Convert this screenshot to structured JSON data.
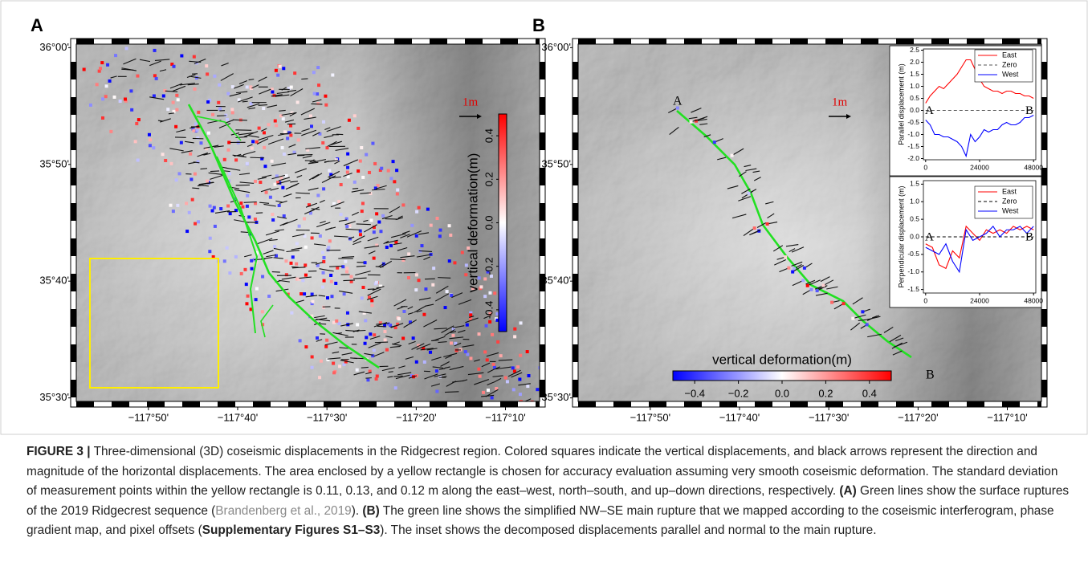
{
  "figure": {
    "panels": [
      {
        "label": "A",
        "xlim": [
          -117.968,
          -117.103
        ],
        "ylim": [
          35.495,
          36.005
        ],
        "xticks": [
          {
            "value": -117.8333,
            "label": "−117°50'"
          },
          {
            "value": -117.6667,
            "label": "−117°40'"
          },
          {
            "value": -117.5,
            "label": "−117°30'"
          },
          {
            "value": -117.3333,
            "label": "−117°20'"
          },
          {
            "value": -117.1667,
            "label": "−117°10'"
          }
        ],
        "yticks": [
          {
            "value": 36,
            "label": "36°00'"
          },
          {
            "value": 35.8333,
            "label": "35°50'"
          },
          {
            "value": 35.6667,
            "label": "35°40'"
          },
          {
            "value": 35.5,
            "label": "35°30'"
          }
        ],
        "scale_label": "1m",
        "colorbar": {
          "label": "vertical deformation(m)",
          "orientation": "vertical",
          "lim": [
            -0.5,
            0.5
          ],
          "ticks": [
            0.4,
            0.2,
            {
              "value": 0,
              "label": "0.0"
            },
            -0.2,
            -0.4
          ]
        }
      },
      {
        "label": "B",
        "xlim": [
          -117.968,
          -117.103
        ],
        "ylim": [
          35.495,
          36.005
        ],
        "xticks": [
          {
            "value": -117.8333,
            "label": "−117°50'"
          },
          {
            "value": -117.6667,
            "label": "−117°40'"
          },
          {
            "value": -117.5,
            "label": "−117°30'"
          },
          {
            "value": -117.3333,
            "label": "−117°20'"
          },
          {
            "value": -117.1667,
            "label": "−117°10'"
          }
        ],
        "yticks": [
          {
            "value": 36,
            "label": "36°00'"
          },
          {
            "value": 35.8333,
            "label": "35°50'"
          },
          {
            "value": 35.6667,
            "label": "35°40'"
          },
          {
            "value": 35.5,
            "label": "35°30'"
          }
        ],
        "scale_label": "1m",
        "endpoints": [
          "A",
          "B"
        ],
        "colorbar": {
          "label": "vertical deformation(m)",
          "orientation": "horizontal",
          "lim": [
            -0.5,
            0.5
          ],
          "ticks": [
            {
              "value": -0.4,
              "label": "−0.4"
            },
            {
              "value": -0.2,
              "label": "−0.2"
            },
            {
              "value": 0,
              "label": "0.0"
            },
            0.2,
            0.4
          ]
        }
      }
    ]
  },
  "chart_data": [
    {
      "type": "line",
      "y_label": "Parallel displacement (m)",
      "annotations": [
        "A",
        "B"
      ],
      "xlim": [
        -1000,
        49000
      ],
      "xticks": [
        0,
        24000,
        48000
      ],
      "ylim": [
        -2.05,
        2.55
      ],
      "yticks": [
        2.5,
        {
          "value": 2,
          "label": "2.0"
        },
        1.5,
        {
          "value": 1,
          "label": "1.0"
        },
        0.5,
        {
          "value": 0,
          "label": "0.0"
        },
        -0.5,
        {
          "value": -1,
          "label": "-1.0"
        },
        -1.5,
        {
          "value": -2,
          "label": "-2.0"
        }
      ],
      "legend": "top-right",
      "series": [
        {
          "name": "East",
          "color": "#ff0000",
          "style": "solid",
          "x": [
            0,
            2000,
            4000,
            6000,
            8000,
            10000,
            12000,
            14000,
            16000,
            18000,
            20000,
            22000,
            24000,
            26000,
            28000,
            30000,
            32000,
            34000,
            36000,
            38000,
            40000,
            42000,
            44000,
            46000,
            48000
          ],
          "values": [
            0.3,
            0.6,
            0.8,
            1.0,
            0.9,
            1.1,
            1.3,
            1.5,
            1.8,
            2.1,
            2.1,
            1.7,
            1.3,
            1.0,
            0.9,
            0.8,
            0.8,
            0.7,
            0.8,
            0.8,
            0.7,
            0.7,
            0.6,
            0.6,
            0.5
          ]
        },
        {
          "name": "Zero",
          "color": "#555555",
          "style": "dashed",
          "x": [
            0,
            48000
          ],
          "values": [
            0,
            0
          ]
        },
        {
          "name": "West",
          "color": "#0000ff",
          "style": "solid",
          "x": [
            0,
            2000,
            4000,
            6000,
            8000,
            10000,
            12000,
            14000,
            16000,
            18000,
            20000,
            22000,
            24000,
            26000,
            28000,
            30000,
            32000,
            34000,
            36000,
            38000,
            40000,
            42000,
            44000,
            46000,
            48000
          ],
          "values": [
            -0.4,
            -0.6,
            -1.0,
            -1.0,
            -1.1,
            -1.1,
            -1.2,
            -1.3,
            -1.5,
            -1.9,
            -1.0,
            -1.3,
            -1.1,
            -0.8,
            -0.9,
            -0.8,
            -0.8,
            -0.6,
            -0.5,
            -0.6,
            -0.6,
            -0.5,
            -0.3,
            -0.3,
            -0.2
          ]
        }
      ]
    },
    {
      "type": "line",
      "y_label": "Perpendicular displacement (m)",
      "annotations": [
        "A",
        "B"
      ],
      "xlim": [
        -1000,
        49000
      ],
      "xticks": [
        0,
        24000,
        48000
      ],
      "ylim": [
        -1.6,
        1.6
      ],
      "yticks": [
        1.5,
        {
          "value": 1,
          "label": "1.0"
        },
        0.5,
        {
          "value": 0,
          "label": "0.0"
        },
        -0.5,
        {
          "value": -1,
          "label": "-1.0"
        },
        -1.5
      ],
      "legend": "top-right",
      "series": [
        {
          "name": "East",
          "color": "#ff0000",
          "style": "solid",
          "x": [
            0,
            3000,
            6000,
            9000,
            12000,
            15000,
            18000,
            21000,
            24000,
            27000,
            30000,
            33000,
            36000,
            39000,
            42000,
            45000,
            48000
          ],
          "values": [
            -0.2,
            -0.3,
            -0.8,
            -0.9,
            -0.4,
            -0.6,
            0.3,
            0.1,
            -0.1,
            0.2,
            0.1,
            0.2,
            0.1,
            0.3,
            0.2,
            0.3,
            0.2
          ]
        },
        {
          "name": "Zero",
          "color": "#000000",
          "style": "dashed",
          "x": [
            0,
            48000
          ],
          "values": [
            0,
            0
          ]
        },
        {
          "name": "West",
          "color": "#0000ff",
          "style": "solid",
          "x": [
            0,
            3000,
            6000,
            9000,
            12000,
            15000,
            18000,
            21000,
            24000,
            27000,
            30000,
            33000,
            36000,
            39000,
            42000,
            45000,
            48000
          ],
          "values": [
            -0.3,
            -0.4,
            -0.5,
            -0.2,
            -0.7,
            -1.0,
            0.2,
            -0.1,
            0.0,
            0.1,
            0.3,
            0.0,
            0.2,
            0.2,
            0.3,
            0.1,
            0.3
          ]
        }
      ]
    }
  ],
  "caption": {
    "figure_label": "FIGURE 3 |",
    "text_1": "Three-dimensional (3D) coseismic displacements in the Ridgecrest region. Colored squares indicate the vertical displacements, and black arrows represent the direction and magnitude of the horizontal displacements. The area enclosed by a yellow rectangle is chosen for accuracy evaluation assuming very smooth coseismic deformation. The standard deviation of measurement points within the yellow rectangle is 0.11, 0.13, and 0.12 m along the east–west, north–south, and up–down directions, respectively.",
    "panel_a": "(A)",
    "text_2": "Green lines show the surface ruptures of the 2019 Ridgecrest sequence (",
    "citation": "Brandenberg et al., 2019",
    "text_3": ").",
    "panel_b": "(B)",
    "text_4": "The green line shows the simplified NW–SE main rupture that we mapped according to the coseismic interferogram, phase gradient map, and pixel offsets (",
    "supplement": "Supplementary Figures S1–S3",
    "text_5": "). The inset shows the decomposed displacements parallel and normal to the main rupture."
  }
}
